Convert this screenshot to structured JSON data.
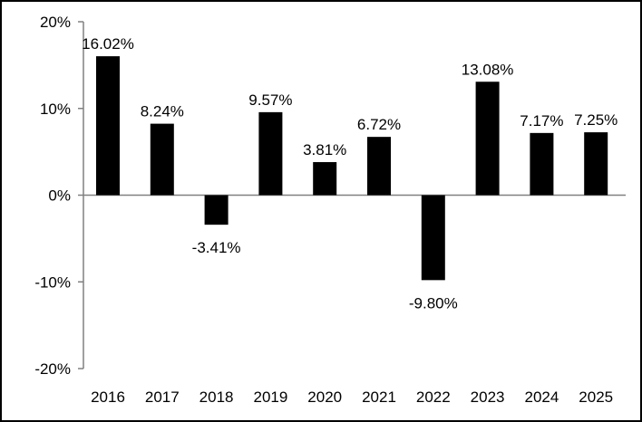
{
  "chart_data": {
    "type": "bar",
    "categories": [
      "2016",
      "2017",
      "2018",
      "2019",
      "2020",
      "2021",
      "2022",
      "2023",
      "2024",
      "2025"
    ],
    "values": [
      16.02,
      8.24,
      -3.41,
      9.57,
      3.81,
      6.72,
      -9.8,
      13.08,
      7.17,
      7.25
    ],
    "data_labels": [
      "16.02%",
      "8.24%",
      "-3.41%",
      "9.57%",
      "3.81%",
      "6.72%",
      "-9.80%",
      "13.08%",
      "7.17%",
      "7.25%"
    ],
    "title": "",
    "xlabel": "",
    "ylabel": "",
    "ylim": [
      -20,
      20
    ],
    "y_ticks": [
      20,
      10,
      0,
      -10,
      -20
    ],
    "y_tick_labels": [
      "20%",
      "10%",
      "0%",
      "-10%",
      "-20%"
    ],
    "grid": false,
    "legend": "none",
    "bar_color": "#000000",
    "axis_color": "#808080"
  }
}
